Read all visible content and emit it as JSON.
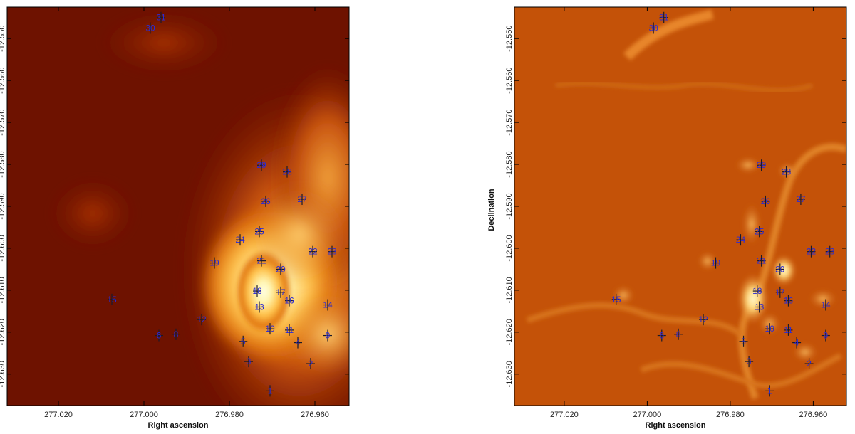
{
  "panels": [
    {
      "id": "left",
      "colormap": "heat-smooth",
      "xlabel": "Right ascension",
      "ylabel": "",
      "show_yticks": true
    },
    {
      "id": "right",
      "colormap": "heat-filtered",
      "xlabel": "Right ascension",
      "ylabel": "Declination",
      "show_yticks": true
    }
  ],
  "axes": {
    "ra_range": [
      277.032,
      276.952
    ],
    "dec_range": [
      -12.6375,
      -12.5425
    ],
    "x_ticks": [
      "277.020",
      "277.000",
      "276.980",
      "276.960"
    ],
    "x_tick_values": [
      277.02,
      277.0,
      276.98,
      276.96
    ],
    "y_ticks": [
      "-12.550",
      "-12.560",
      "-12.570",
      "-12.580",
      "-12.590",
      "-12.600",
      "-12.610",
      "-12.620",
      "-12.630"
    ],
    "y_tick_values": [
      -12.55,
      -12.56,
      -12.57,
      -12.58,
      -12.59,
      -12.6,
      -12.61,
      -12.62,
      -12.63
    ]
  },
  "colors": {
    "marker": "#2b2bd6",
    "cross": "#1a1a2a",
    "left_bg": "#6e1200",
    "right_bg": "#c45208"
  },
  "sources": [
    {
      "id": "1",
      "ra": 276.9705,
      "dec": -12.634
    },
    {
      "id": "2",
      "ra": 276.961,
      "dec": -12.6275
    },
    {
      "id": "3",
      "ra": 276.9755,
      "dec": -12.627
    },
    {
      "id": "4",
      "ra": 276.964,
      "dec": -12.6225
    },
    {
      "id": "5",
      "ra": 276.9768,
      "dec": -12.6222
    },
    {
      "id": "6",
      "ra": 276.9965,
      "dec": -12.6208
    },
    {
      "id": "8",
      "ra": 276.9925,
      "dec": -12.6205
    },
    {
      "id": "9",
      "ra": 276.957,
      "dec": -12.6208
    },
    {
      "id": "10",
      "ra": 276.9705,
      "dec": -12.6192
    },
    {
      "id": "11",
      "ra": 276.966,
      "dec": -12.6195
    },
    {
      "id": "12",
      "ra": 276.9865,
      "dec": -12.617
    },
    {
      "id": "13",
      "ra": 276.973,
      "dec": -12.614
    },
    {
      "id": "14",
      "ra": 276.957,
      "dec": -12.6135
    },
    {
      "id": "15",
      "ra": 277.0075,
      "dec": -12.6122
    },
    {
      "id": "16",
      "ra": 276.966,
      "dec": -12.6125
    },
    {
      "id": "17",
      "ra": 276.968,
      "dec": -12.6105
    },
    {
      "id": "18",
      "ra": 276.9735,
      "dec": -12.6102
    },
    {
      "id": "19",
      "ra": 276.9835,
      "dec": -12.6035
    },
    {
      "id": "20",
      "ra": 276.968,
      "dec": -12.605
    },
    {
      "id": "21",
      "ra": 276.9725,
      "dec": -12.603
    },
    {
      "id": "22",
      "ra": 276.9605,
      "dec": -12.6008
    },
    {
      "id": "23",
      "ra": 276.956,
      "dec": -12.6008
    },
    {
      "id": "24",
      "ra": 276.9775,
      "dec": -12.598
    },
    {
      "id": "25",
      "ra": 276.973,
      "dec": -12.596
    },
    {
      "id": "26",
      "ra": 276.9715,
      "dec": -12.5888
    },
    {
      "id": "27",
      "ra": 276.963,
      "dec": -12.5883
    },
    {
      "id": "28",
      "ra": 276.9665,
      "dec": -12.5818
    },
    {
      "id": "29",
      "ra": 276.9725,
      "dec": -12.5802
    },
    {
      "id": "30",
      "ra": 276.9985,
      "dec": -12.5475
    },
    {
      "id": "31",
      "ra": 276.996,
      "dec": -12.545
    }
  ]
}
